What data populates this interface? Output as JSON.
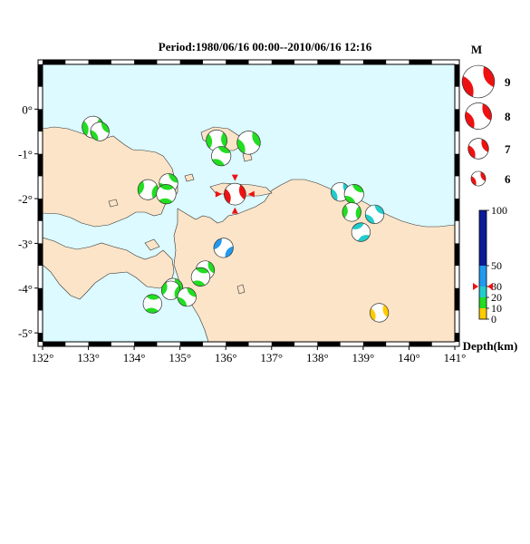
{
  "title": "Period:1980/06/16 00:00--2010/06/16 12:16",
  "map": {
    "lon_range": [
      132,
      141
    ],
    "lat_range": [
      -5.2,
      1.0
    ],
    "ocean_color": "#dcfaff",
    "land_color": "#fce4c8",
    "lon_ticks": [
      "132°",
      "133°",
      "134°",
      "135°",
      "136°",
      "137°",
      "138°",
      "139°",
      "140°",
      "141°"
    ],
    "lat_ticks": [
      "0°",
      "-1°",
      "-2°",
      "-3°",
      "-4°",
      "-5°"
    ]
  },
  "events": [
    {
      "lon": 133.1,
      "lat": -0.4,
      "mag": 6.4,
      "color": "#22dd22",
      "rot": 35
    },
    {
      "lon": 133.25,
      "lat": -0.5,
      "mag": 6.0,
      "color": "#22dd22",
      "rot": 10
    },
    {
      "lon": 135.8,
      "lat": -0.7,
      "mag": 6.3,
      "color": "#22dd22",
      "rot": 40
    },
    {
      "lon": 136.5,
      "lat": -0.75,
      "mag": 6.6,
      "color": "#22dd22",
      "rot": 20
    },
    {
      "lon": 135.9,
      "lat": -1.05,
      "mag": 6.1,
      "color": "#22dd22",
      "rot": -20
    },
    {
      "lon": 134.3,
      "lat": -1.8,
      "mag": 6.2,
      "color": "#22dd22",
      "rot": 60
    },
    {
      "lon": 134.75,
      "lat": -1.65,
      "mag": 6.0,
      "color": "#22dd22",
      "rot": 0
    },
    {
      "lon": 134.7,
      "lat": -1.9,
      "mag": 6.1,
      "color": "#22dd22",
      "rot": -40
    },
    {
      "lon": 136.2,
      "lat": -1.9,
      "mag": 6.4,
      "color": "#ee1111",
      "rot": 30,
      "selected": true
    },
    {
      "lon": 138.5,
      "lat": -1.85,
      "mag": 6.0,
      "color": "#22cccc",
      "rot": 20
    },
    {
      "lon": 138.8,
      "lat": -1.9,
      "mag": 6.1,
      "color": "#22dd22",
      "rot": -10
    },
    {
      "lon": 138.75,
      "lat": -2.3,
      "mag": 6.0,
      "color": "#22dd22",
      "rot": 50
    },
    {
      "lon": 139.25,
      "lat": -2.35,
      "mag": 6.0,
      "color": "#22cccc",
      "rot": 0
    },
    {
      "lon": 138.95,
      "lat": -2.75,
      "mag": 6.0,
      "color": "#22cccc",
      "rot": -70
    },
    {
      "lon": 135.95,
      "lat": -3.1,
      "mag": 6.1,
      "color": "#2299ee",
      "rot": 80
    },
    {
      "lon": 135.55,
      "lat": -3.6,
      "mag": 6.0,
      "color": "#22dd22",
      "rot": 20
    },
    {
      "lon": 135.45,
      "lat": -3.75,
      "mag": 6.0,
      "color": "#22dd22",
      "rot": -30
    },
    {
      "lon": 134.85,
      "lat": -4.0,
      "mag": 6.1,
      "color": "#22dd22",
      "rot": 10
    },
    {
      "lon": 134.8,
      "lat": -4.05,
      "mag": 6.0,
      "color": "#22dd22",
      "rot": 60
    },
    {
      "lon": 135.15,
      "lat": -4.2,
      "mag": 6.0,
      "color": "#22dd22",
      "rot": 0
    },
    {
      "lon": 134.4,
      "lat": -4.35,
      "mag": 6.0,
      "color": "#22dd22",
      "rot": -40
    },
    {
      "lon": 139.35,
      "lat": -4.55,
      "mag": 6.0,
      "color": "#ffcc00",
      "rot": 30
    }
  ],
  "legend_mag": {
    "title": "M",
    "items": [
      {
        "label": "9",
        "mag": 9,
        "color": "#ee1111"
      },
      {
        "label": "8",
        "mag": 8,
        "color": "#ee1111"
      },
      {
        "label": "7",
        "mag": 7,
        "color": "#ee1111"
      },
      {
        "label": "6",
        "mag": 6,
        "color": "#ee1111"
      }
    ]
  },
  "depth_scale": {
    "title": "Depth(km)",
    "labels": [
      "100",
      "50",
      "30",
      "20",
      "10",
      "0"
    ],
    "marker_depth": 30,
    "bands": [
      {
        "from": 0,
        "to": 10,
        "color": "#ffcc00"
      },
      {
        "from": 10,
        "to": 20,
        "color": "#22dd22"
      },
      {
        "from": 20,
        "to": 30,
        "color": "#22cccc"
      },
      {
        "from": 30,
        "to": 50,
        "color": "#2299ee"
      },
      {
        "from": 50,
        "to": 100,
        "color": "#0a1a99"
      }
    ]
  }
}
